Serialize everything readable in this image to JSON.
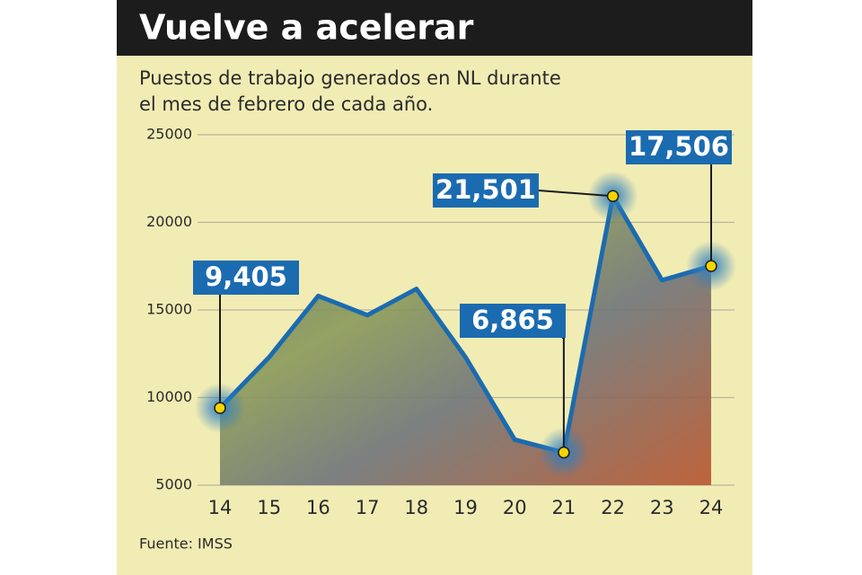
{
  "chart_data": {
    "type": "line",
    "title": "Vuelve a acelerar",
    "subtitle": [
      "Puestos de trabajo generados en NL durante",
      "el mes de febrero de cada año."
    ],
    "source": "Fuente: IMSS",
    "categories": [
      "14",
      "15",
      "16",
      "17",
      "18",
      "19",
      "20",
      "21",
      "22",
      "23",
      "24"
    ],
    "values": [
      9405,
      12300,
      15800,
      14700,
      16200,
      12300,
      7600,
      6865,
      21501,
      16700,
      17506
    ],
    "value_labels": [
      "9,405",
      null,
      null,
      null,
      null,
      null,
      null,
      "6,865",
      "21,501",
      null,
      "17,506"
    ],
    "color": "#1b6bb0",
    "ylim": [
      5000,
      25000
    ],
    "yticks": [
      5000,
      10000,
      15000,
      20000,
      25000
    ],
    "grid": true
  }
}
